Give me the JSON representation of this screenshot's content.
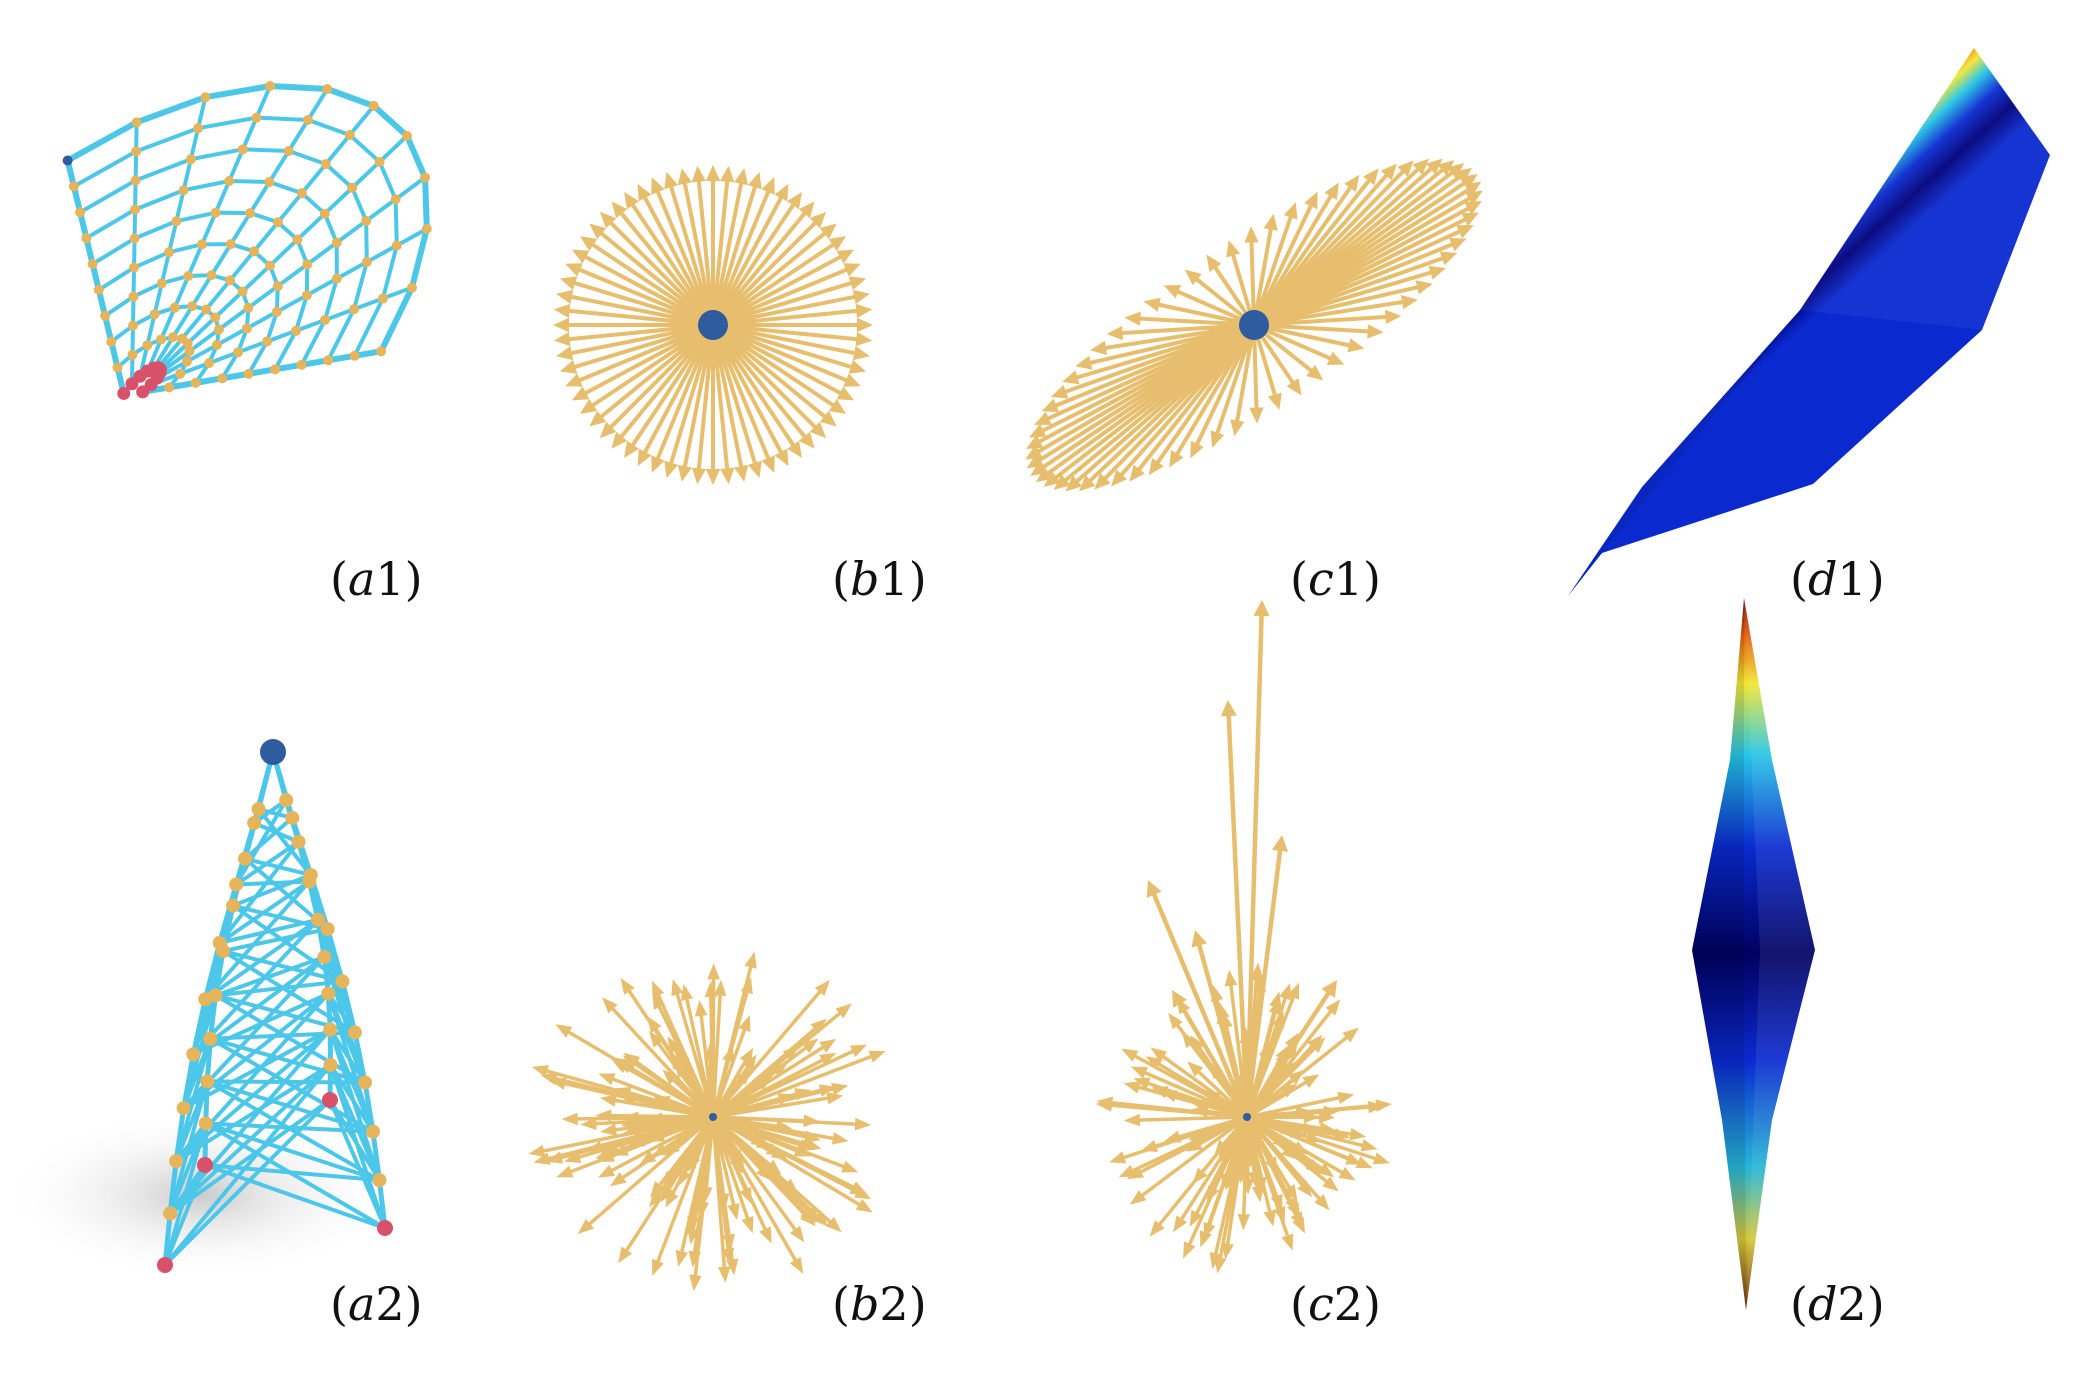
{
  "figure": {
    "panels": [
      {
        "id": "a1",
        "label_open": "(",
        "label_letter": "a",
        "label_digit": "1",
        "label_close": ")"
      },
      {
        "id": "b1",
        "label_open": "(",
        "label_letter": "b",
        "label_digit": "1",
        "label_close": ")"
      },
      {
        "id": "c1",
        "label_open": "(",
        "label_letter": "c",
        "label_digit": "1",
        "label_close": ")"
      },
      {
        "id": "d1",
        "label_open": "(",
        "label_letter": "d",
        "label_digit": "1",
        "label_close": ")"
      },
      {
        "id": "a2",
        "label_open": "(",
        "label_letter": "a",
        "label_digit": "2",
        "label_close": ")"
      },
      {
        "id": "b2",
        "label_open": "(",
        "label_letter": "b",
        "label_digit": "2",
        "label_close": ")"
      },
      {
        "id": "c2",
        "label_open": "(",
        "label_letter": "c",
        "label_digit": "2",
        "label_close": ")"
      },
      {
        "id": "d2",
        "label_open": "(",
        "label_letter": "d",
        "label_digit": "2",
        "label_close": ")"
      }
    ]
  },
  "colors": {
    "beam": "#4cc7ea",
    "node": "#e6b45a",
    "support": "#d9506a",
    "load": "#2f5c9e",
    "arrow": "#e6be6e",
    "jet_dark": "#00006e",
    "jet_blue": "#0a2ad0",
    "jet_cyan": "#26c6e6",
    "jet_yellow": "#f2e632",
    "jet_red": "#d81010",
    "jet_darkred": "#7e0000"
  }
}
